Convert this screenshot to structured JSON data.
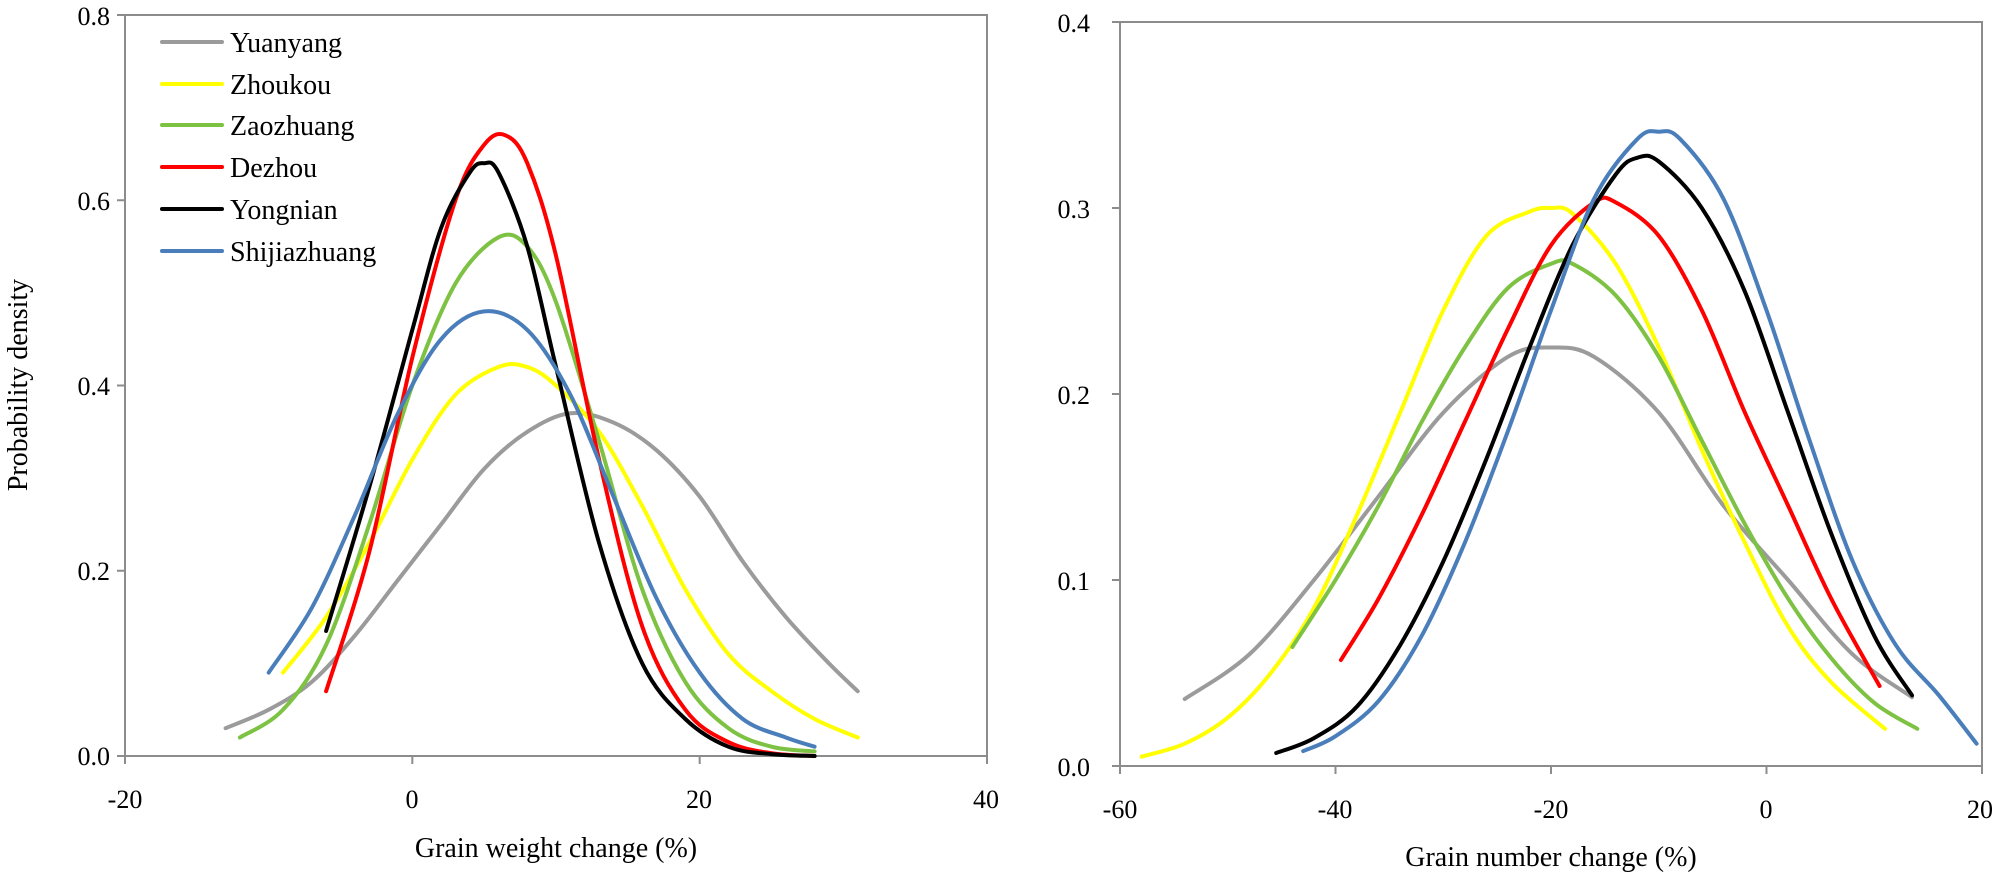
{
  "colors": {
    "Yuanyang": "#9b9b9b",
    "Zhoukou": "#ffff00",
    "Zaozhuang": "#7dc242",
    "Dezhou": "#ff0000",
    "Yongnian": "#000000",
    "Shijiazhuang": "#4a7ebb"
  },
  "chart_data": [
    {
      "type": "line",
      "xlabel": "Grain weight change (%)",
      "ylabel": "Probability density",
      "xlim": [
        -20,
        40
      ],
      "ylim": [
        0,
        0.8
      ],
      "xticks": [
        -20,
        0,
        20,
        40
      ],
      "xtick_labels": [
        "-20",
        "0",
        "20",
        "40"
      ],
      "yticks": [
        0,
        0.2,
        0.4,
        0.6,
        0.8
      ],
      "ytick_labels": [
        "0.0",
        "0.2",
        "0.4",
        "0.6",
        "0.8"
      ],
      "legend": {
        "position": "top-left",
        "entries": [
          "Yuanyang",
          "Zhoukou",
          "Zaozhuang",
          "Dezhou",
          "Yongnian",
          "Shijiazhuang"
        ]
      },
      "series": [
        {
          "name": "Yuanyang",
          "x": [
            -13,
            -10,
            -7,
            -4,
            -1,
            2,
            5,
            8,
            11,
            14,
            17,
            20,
            23,
            26,
            29,
            31
          ],
          "y": [
            0.03,
            0.05,
            0.08,
            0.13,
            0.19,
            0.25,
            0.31,
            0.35,
            0.37,
            0.36,
            0.33,
            0.28,
            0.21,
            0.15,
            0.1,
            0.07
          ]
        },
        {
          "name": "Zhoukou",
          "x": [
            -9,
            -6,
            -3,
            0,
            3,
            6,
            8,
            10,
            13,
            16,
            19,
            22,
            25,
            28,
            31
          ],
          "y": [
            0.09,
            0.15,
            0.23,
            0.32,
            0.39,
            0.42,
            0.42,
            0.4,
            0.35,
            0.27,
            0.18,
            0.11,
            0.07,
            0.04,
            0.02
          ]
        },
        {
          "name": "Zaozhuang",
          "x": [
            -12,
            -9,
            -6,
            -3,
            0,
            3,
            6,
            8,
            10,
            13,
            16,
            19,
            22,
            25,
            28
          ],
          "y": [
            0.02,
            0.05,
            0.12,
            0.25,
            0.4,
            0.51,
            0.56,
            0.55,
            0.49,
            0.34,
            0.18,
            0.08,
            0.03,
            0.01,
            0.005
          ]
        },
        {
          "name": "Dezhou",
          "x": [
            -6,
            -3,
            0,
            3,
            5,
            6.5,
            8,
            10,
            13,
            16,
            19,
            22,
            25,
            28
          ],
          "y": [
            0.07,
            0.22,
            0.43,
            0.6,
            0.66,
            0.67,
            0.64,
            0.54,
            0.32,
            0.14,
            0.05,
            0.015,
            0.003,
            0.0
          ]
        },
        {
          "name": "Yongnian",
          "x": [
            -6,
            -3,
            0,
            2,
            4,
            5,
            6,
            8,
            10,
            13,
            16,
            19,
            22,
            25,
            28
          ],
          "y": [
            0.135,
            0.29,
            0.46,
            0.57,
            0.63,
            0.64,
            0.63,
            0.55,
            0.42,
            0.23,
            0.1,
            0.04,
            0.01,
            0.002,
            0.0
          ]
        },
        {
          "name": "Shijiazhuang",
          "x": [
            -10,
            -7,
            -4,
            -1,
            2,
            5,
            8,
            11,
            14,
            17,
            20,
            23,
            26,
            28
          ],
          "y": [
            0.09,
            0.16,
            0.26,
            0.37,
            0.45,
            0.48,
            0.46,
            0.39,
            0.28,
            0.17,
            0.09,
            0.04,
            0.02,
            0.01
          ]
        }
      ]
    },
    {
      "type": "line",
      "xlabel": "Grain number change (%)",
      "ylabel": "",
      "xlim": [
        -60,
        20
      ],
      "ylim": [
        0,
        0.4
      ],
      "xticks": [
        -60,
        -40,
        -20,
        0,
        20
      ],
      "xtick_labels": [
        "-60",
        "-40",
        "-20",
        "0",
        "20"
      ],
      "yticks": [
        0,
        0.1,
        0.2,
        0.3,
        0.4
      ],
      "ytick_labels": [
        "0.0",
        "0.1",
        "0.2",
        "0.3",
        "0.4"
      ],
      "series": [
        {
          "name": "Yuanyang",
          "x": [
            -54,
            -48,
            -42,
            -36,
            -30,
            -24,
            -20,
            -16,
            -10,
            -4,
            2,
            8,
            13.5
          ],
          "y": [
            0.036,
            0.06,
            0.1,
            0.145,
            0.19,
            0.22,
            0.225,
            0.22,
            0.19,
            0.14,
            0.1,
            0.06,
            0.037
          ]
        },
        {
          "name": "Zhoukou",
          "x": [
            -58,
            -54,
            -50,
            -46,
            -42,
            -38,
            -34,
            -30,
            -26,
            -22,
            -20,
            -18,
            -14,
            -10,
            -6,
            -2,
            2,
            6,
            11
          ],
          "y": [
            0.005,
            0.012,
            0.026,
            0.05,
            0.085,
            0.135,
            0.19,
            0.245,
            0.285,
            0.298,
            0.3,
            0.297,
            0.27,
            0.225,
            0.17,
            0.12,
            0.075,
            0.045,
            0.02
          ]
        },
        {
          "name": "Zaozhuang",
          "x": [
            -44,
            -40,
            -36,
            -32,
            -28,
            -24,
            -20,
            -18,
            -14,
            -10,
            -6,
            -2,
            2,
            6,
            10,
            14
          ],
          "y": [
            0.064,
            0.1,
            0.14,
            0.185,
            0.225,
            0.257,
            0.27,
            0.27,
            0.253,
            0.22,
            0.175,
            0.13,
            0.09,
            0.058,
            0.034,
            0.02
          ]
        },
        {
          "name": "Dezhou",
          "x": [
            -39.5,
            -36,
            -32,
            -28,
            -24,
            -20,
            -16,
            -14,
            -10,
            -6,
            -2,
            2,
            6,
            10.5
          ],
          "y": [
            0.057,
            0.09,
            0.135,
            0.185,
            0.235,
            0.28,
            0.303,
            0.303,
            0.285,
            0.245,
            0.19,
            0.14,
            0.09,
            0.043
          ]
        },
        {
          "name": "Yongnian",
          "x": [
            -45.5,
            -42,
            -38,
            -34,
            -30,
            -26,
            -22,
            -18,
            -14,
            -12,
            -10,
            -6,
            -2,
            2,
            6,
            10,
            13.5
          ],
          "y": [
            0.007,
            0.015,
            0.032,
            0.065,
            0.11,
            0.165,
            0.225,
            0.28,
            0.318,
            0.327,
            0.325,
            0.3,
            0.255,
            0.19,
            0.125,
            0.07,
            0.038
          ]
        },
        {
          "name": "Shijiazhuang",
          "x": [
            -43,
            -40,
            -36,
            -32,
            -28,
            -24,
            -20,
            -16,
            -12,
            -10,
            -8,
            -4,
            0,
            4,
            8,
            12,
            16,
            19.5
          ],
          "y": [
            0.008,
            0.016,
            0.035,
            0.07,
            0.12,
            0.18,
            0.245,
            0.305,
            0.337,
            0.341,
            0.337,
            0.305,
            0.245,
            0.175,
            0.11,
            0.065,
            0.038,
            0.012
          ]
        }
      ]
    }
  ]
}
